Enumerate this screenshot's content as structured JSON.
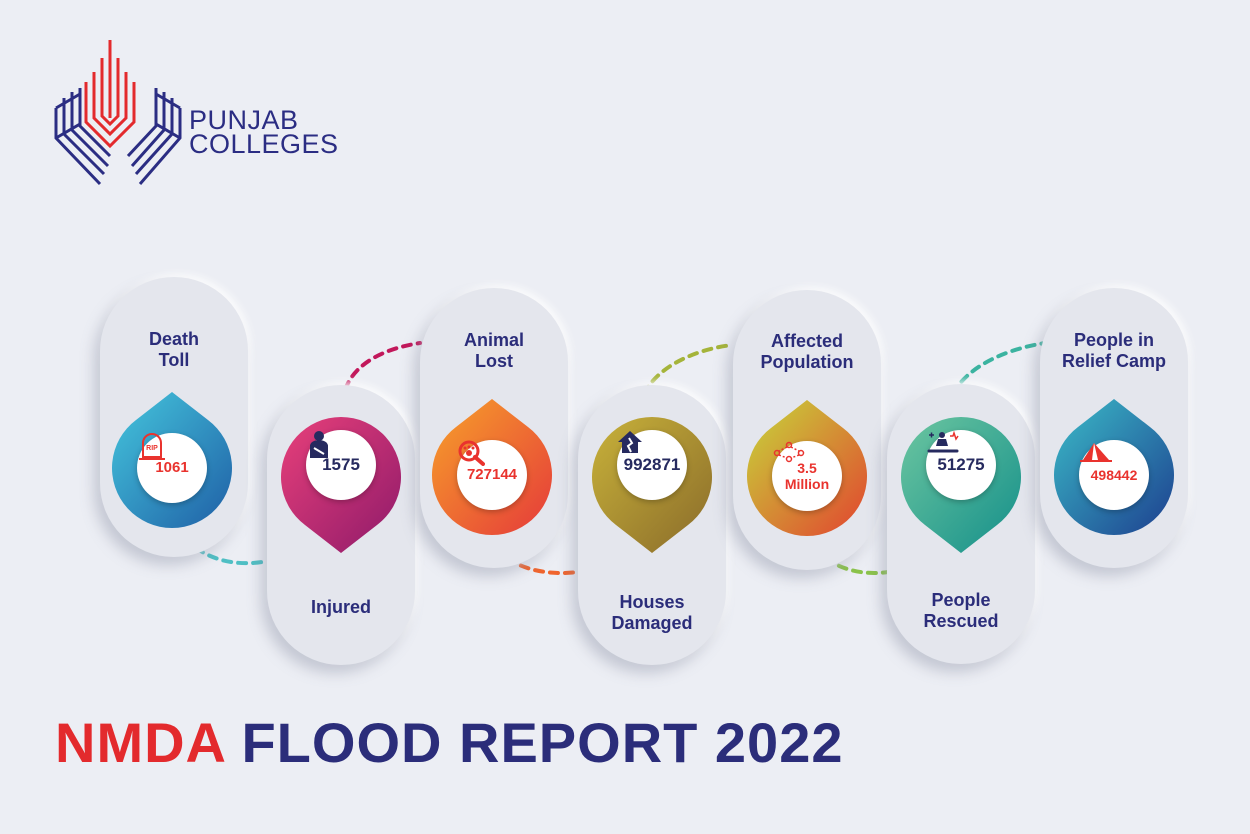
{
  "brand": {
    "line1": "PUNJAB",
    "line2": "COLLEGES"
  },
  "stats": [
    {
      "label": "Death Toll",
      "value": "1061",
      "icon": "rip-tombstone-icon"
    },
    {
      "label": "Injured",
      "value": "1575",
      "icon": "injured-person-icon"
    },
    {
      "label": "Animal Lost",
      "value": "727144",
      "icon": "paw-search-icon"
    },
    {
      "label": "Houses Damaged",
      "value": "992871",
      "icon": "damaged-house-icon"
    },
    {
      "label": "Affected Population",
      "value": "3.5 Million",
      "icon": "people-network-icon"
    },
    {
      "label": "People Rescued",
      "value": "51275",
      "icon": "rescue-icon"
    },
    {
      "label": "People in Relief Camp",
      "value": "498442",
      "icon": "tent-icon"
    }
  ],
  "title": {
    "part1": "NMDA",
    "part2": "FLOOD REPORT 2022"
  },
  "colors": {
    "background": "#eceef4",
    "navy": "#2b2d7a",
    "red": "#e32a2d",
    "teal": "#3bb3c5",
    "magenta": "#c2185b",
    "orange": "#f0652e",
    "olive": "#a5b43a",
    "green": "#8bc34a"
  }
}
